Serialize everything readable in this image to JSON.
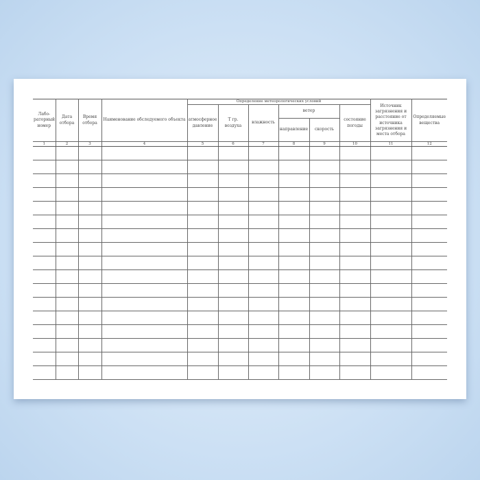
{
  "form": {
    "headers": {
      "lab_number": "Лабо-раторный номер",
      "sample_date": "Дата отбора",
      "sample_time": "Время отбора",
      "object_name": "Наименование обследуемого объекта",
      "meteo_group": "Определение метеорологических условий",
      "pressure": "атмосферное давление",
      "air_temp": "Т гр. воздуха",
      "humidity": "влажность",
      "wind_group": "ветер",
      "wind_direction": "направление",
      "wind_speed": "скорость",
      "weather": "состояние погоды",
      "source": "Источник загрязнения и расстояние от источника загрязнения и места отбора",
      "substances": "Определяемые вещества"
    },
    "column_numbers": [
      "1",
      "2",
      "3",
      "4",
      "5",
      "6",
      "7",
      "8",
      "9",
      "10",
      "11",
      "12"
    ],
    "empty_row_count": 17
  }
}
